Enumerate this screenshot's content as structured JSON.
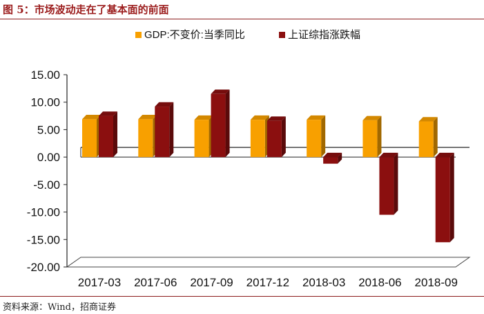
{
  "header": {
    "title": "图 5：市场波动走在了基本面的前面"
  },
  "footer": {
    "source": "资料来源：Wind，招商证券"
  },
  "colors": {
    "gdp": "#f8a000",
    "index": "#8b0f0f",
    "title": "#9b1c1c"
  },
  "chart_data": {
    "type": "bar",
    "title": "",
    "xlabel": "",
    "ylabel": "",
    "ylim": [
      -20,
      15
    ],
    "yticks": [
      "15.00",
      "10.00",
      "5.00",
      "0.00",
      "-5.00",
      "-10.00",
      "-15.00",
      "-20.00"
    ],
    "categories": [
      "2017-03",
      "2017-06",
      "2017-09",
      "2017-12",
      "2018-03",
      "2018-06",
      "2018-09"
    ],
    "series": [
      {
        "name": "GDP:不变价:当季同比",
        "values": [
          6.9,
          6.9,
          6.8,
          6.8,
          6.8,
          6.7,
          6.5
        ],
        "color": "#f8a000"
      },
      {
        "name": "上证综指涨跌幅",
        "values": [
          7.5,
          9.2,
          11.5,
          6.6,
          -1.2,
          -10.5,
          -15.5
        ],
        "color": "#8b0f0f"
      }
    ],
    "legend_position": "top",
    "grid": false
  }
}
